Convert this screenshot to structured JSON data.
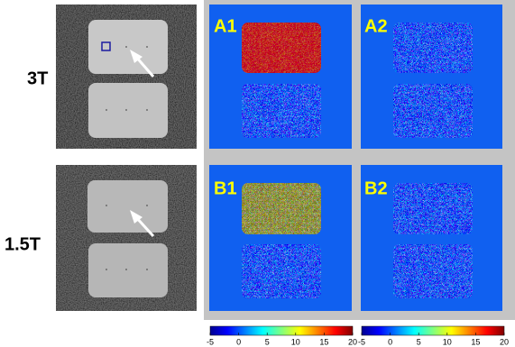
{
  "rows": [
    {
      "label": "3T"
    },
    {
      "label": "1.5T"
    }
  ],
  "panels": [
    {
      "label": "A1"
    },
    {
      "label": "A2"
    },
    {
      "label": "B1"
    },
    {
      "label": "B2"
    }
  ],
  "colorbars": [
    {
      "lim": [
        -5,
        20
      ],
      "ticks": [
        -5,
        0,
        5,
        10,
        15,
        20
      ]
    },
    {
      "lim": [
        -5,
        20
      ],
      "ticks": [
        -5,
        0,
        5,
        10,
        15,
        20
      ]
    }
  ]
}
